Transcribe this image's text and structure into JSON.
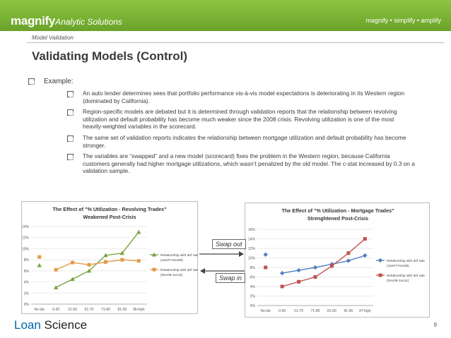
{
  "header": {
    "brand_bold": "magnify",
    "brand_italic": "Analytic Solutions",
    "tagline": "magnify • simplify • amplify"
  },
  "section_label": "Model Validation",
  "title": "Validating Models (Control)",
  "example_label": "Example:",
  "bullets": [
    "An auto lender determines sees that portfolio performance vis-à-vis model expectations is deteriorating in its Western region (dominated by California).",
    "Region-specific models are debated but it is determined through validation reports that the relationship between revolving utilization and default probability has become much weaker since the 2008 crisis. Revolving utilization is one of the most heavily-weighted variables in the scorecard.",
    "The same set of validation reports indicates the relationship between mortgage utilization and default probability has become stronger.",
    "The variables are “swapped” and a new model (scorecard) fixes the problem in the Western region, because California customers generally had higher mortgage utilizations, which wasn’t penalized by the old model.  The c-stat increased by 0.3 on a validation sample."
  ],
  "swap_out": "Swap out",
  "swap_in": "Swap in",
  "footer": {
    "logo_a": "Loan ",
    "logo_b": "Science",
    "page": "9"
  },
  "colors": {
    "green": "#8dc63f",
    "blue_series": "#4f81bd",
    "red_series": "#c0504d",
    "green_series": "#77a33f",
    "orange_series": "#e49a4a"
  },
  "chart_data": [
    {
      "type": "line",
      "title": "The Effect of \"% Utilization - Revolving Trades\"",
      "subtitle": "Weakened Post-Crisis",
      "categories": [
        "No tds",
        "0-20",
        "21-50",
        "51-70",
        "71-80",
        "81-95",
        "96-high"
      ],
      "ylim": [
        0,
        14
      ],
      "yticks": [
        "0%",
        "2%",
        "4%",
        "6%",
        "8%",
        "10%",
        "12%",
        "14%"
      ],
      "series": [
        {
          "name": "Relationship with def rate (Jan07-Nov08)",
          "values": [
            7.0,
            3.0,
            4.5,
            6.0,
            8.8,
            9.2,
            13.0
          ],
          "color": "#77a33f",
          "marker": "triangle"
        },
        {
          "name": "Relationship with def rate (Dec08-Jun11)",
          "values": [
            8.5,
            6.2,
            7.5,
            7.1,
            7.6,
            8.0,
            7.8
          ],
          "color": "#e49a4a",
          "marker": "square"
        }
      ]
    },
    {
      "type": "line",
      "title": "The Effect of \"% Utilization - Mortgage Trades\"",
      "subtitle": "Strenghtened Post-Crisis",
      "categories": [
        "No tds",
        "0-50",
        "51-70",
        "71-80",
        "81-90",
        "91-96",
        "97-high"
      ],
      "ylim": [
        0,
        16
      ],
      "yticks": [
        "0%",
        "2%",
        "4%",
        "6%",
        "8%",
        "10%",
        "12%",
        "14%",
        "16%"
      ],
      "series": [
        {
          "name": "Relationship with def rate (Jan07-Nov08)",
          "values": [
            10.7,
            6.8,
            7.4,
            8.0,
            8.7,
            9.4,
            10.5
          ],
          "color": "#4f81bd",
          "marker": "diamond"
        },
        {
          "name": "Relationship with def rate (Dec08-Jun11)",
          "values": [
            8.0,
            4.0,
            5.0,
            6.0,
            8.3,
            11.0,
            14.0
          ],
          "color": "#c0504d",
          "marker": "square"
        }
      ]
    }
  ]
}
